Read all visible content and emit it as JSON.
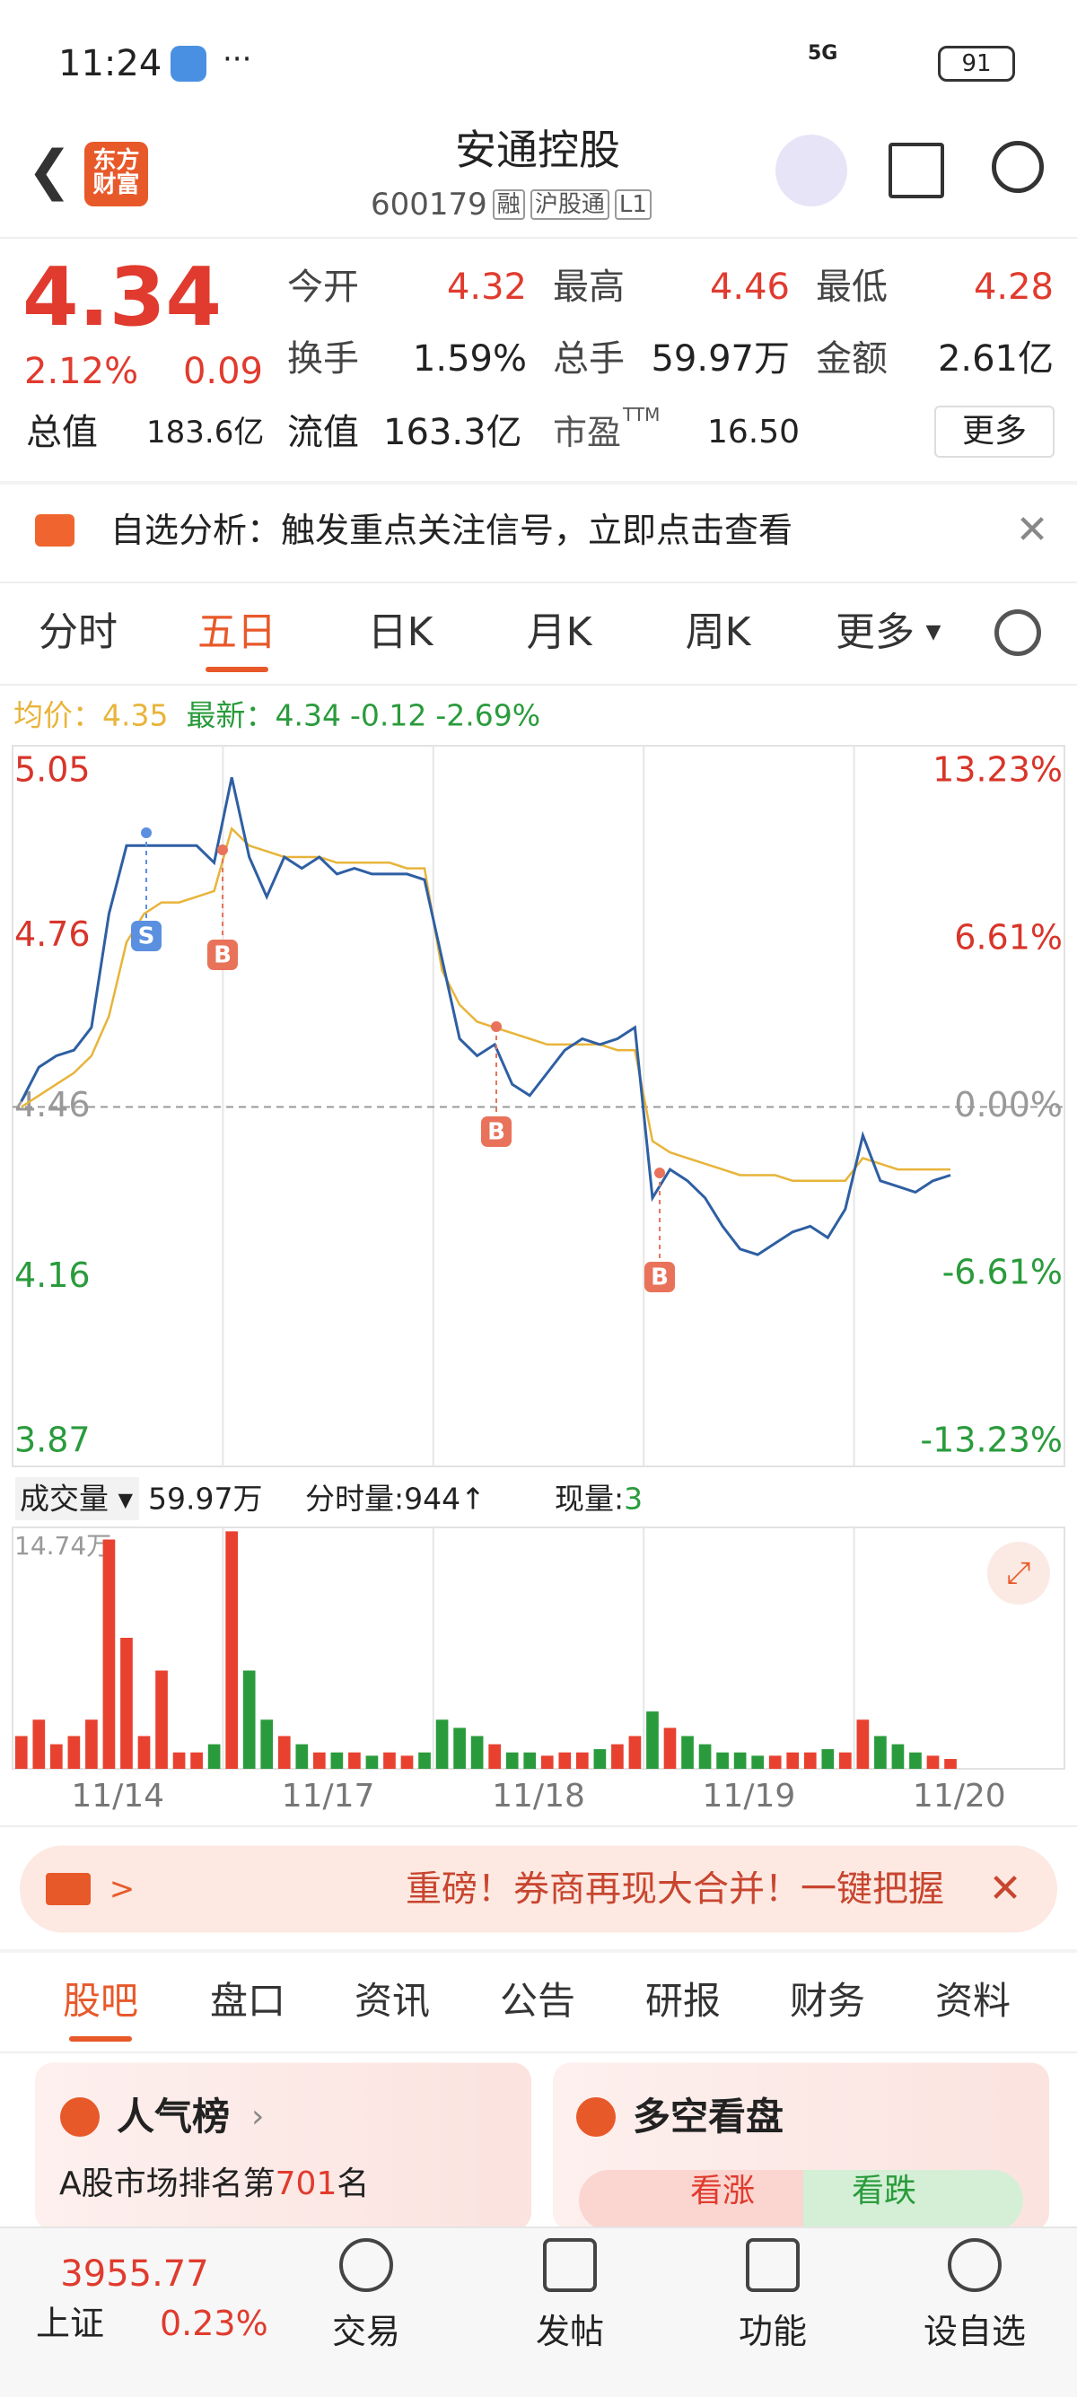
{
  "status_bar": {
    "time": "11:24",
    "network": "5G",
    "battery": "91"
  },
  "header": {
    "logo": "东方财富",
    "title": "安通控股",
    "code": "600179",
    "tags": [
      "融",
      "沪股通",
      "L1"
    ]
  },
  "quote": {
    "price": "4.34",
    "change_pct": "2.12%",
    "change": "0.09",
    "stats": [
      {
        "label": "今开",
        "value": "4.32"
      },
      {
        "label": "最高",
        "value": "4.46"
      },
      {
        "label": "最低",
        "value": "4.28"
      },
      {
        "label": "换手",
        "value": "1.59%"
      },
      {
        "label": "总手",
        "value": "59.97万"
      },
      {
        "label": "金额",
        "value": "2.61亿"
      }
    ],
    "total_value": {
      "label": "总值",
      "value": "183.6亿"
    },
    "float_value": {
      "label": "流值",
      "value": "163.3亿"
    },
    "pe": {
      "label": "市盈",
      "sup": "TTM",
      "value": "16.50"
    },
    "more": "更多"
  },
  "notice": "自选分析：触发重点关注信号，立即点击查看",
  "tabs": {
    "items": [
      "分时",
      "五日",
      "日K",
      "月K",
      "周K",
      "更多"
    ],
    "active": 1
  },
  "legend": {
    "avg_label": "均价：",
    "avg": "4.35",
    "last_label": "最新：",
    "last": "4.34",
    "change": "-0.12",
    "change_pct": "-2.69%"
  },
  "chart_data": [
    {
      "type": "line",
      "xlim": [
        0,
        60
      ],
      "xgrid": [
        12,
        24,
        36,
        48
      ],
      "ylim": [
        3.87,
        5.05
      ],
      "yticks": [
        5.05,
        4.76,
        4.46,
        4.16,
        3.87
      ],
      "y2lim": [
        -13.23,
        13.23
      ],
      "y2ticks": [
        {
          "value": 13.23,
          "label": "13.23%"
        },
        {
          "value": 6.61,
          "label": "6.61%"
        },
        {
          "value": 0,
          "label": "0.00%"
        },
        {
          "value": -6.61,
          "label": "-6.61%"
        },
        {
          "value": -13.23,
          "label": "-13.23%"
        }
      ],
      "trade_marks": [
        "S",
        "B",
        "B",
        "B"
      ],
      "series": [
        {
          "name": "最新",
          "color": "#2e5fa3",
          "values": [
            4.47,
            4.53,
            4.55,
            4.56,
            4.6,
            4.8,
            4.92,
            4.92,
            4.92,
            4.92,
            4.92,
            4.89,
            5.04,
            4.9,
            4.83,
            4.9,
            4.88,
            4.9,
            4.87,
            4.88,
            4.87,
            4.87,
            4.87,
            4.86,
            4.72,
            4.58,
            4.55,
            4.57,
            4.5,
            4.48,
            4.52,
            4.56,
            4.58,
            4.57,
            4.58,
            4.6,
            4.3,
            4.35,
            4.33,
            4.3,
            4.25,
            4.21,
            4.2,
            4.22,
            4.24,
            4.25,
            4.23,
            4.28,
            4.41,
            4.33,
            4.32,
            4.31,
            4.33,
            4.34
          ]
        },
        {
          "name": "均价",
          "color": "#e8b43a",
          "values": [
            4.46,
            4.48,
            4.5,
            4.52,
            4.55,
            4.62,
            4.75,
            4.8,
            4.82,
            4.82,
            4.83,
            4.84,
            4.95,
            4.92,
            4.91,
            4.9,
            4.9,
            4.9,
            4.89,
            4.89,
            4.89,
            4.89,
            4.88,
            4.88,
            4.7,
            4.64,
            4.61,
            4.6,
            4.59,
            4.58,
            4.57,
            4.57,
            4.57,
            4.57,
            4.56,
            4.56,
            4.4,
            4.38,
            4.37,
            4.36,
            4.35,
            4.34,
            4.34,
            4.34,
            4.33,
            4.33,
            4.33,
            4.33,
            4.37,
            4.36,
            4.35,
            4.35,
            4.35,
            4.35
          ]
        }
      ]
    },
    {
      "type": "bar",
      "xlim": [
        0,
        60
      ],
      "ylim": [
        0,
        14.74
      ],
      "yticks": [
        {
          "value": 14.74,
          "label": "14.74万"
        }
      ],
      "xticks": [
        {
          "value": 6,
          "label": "11/14"
        },
        {
          "value": 18,
          "label": "11/17"
        },
        {
          "value": 30,
          "label": "11/18"
        },
        {
          "value": 42,
          "label": "11/19"
        },
        {
          "value": 54,
          "label": "11/20"
        }
      ],
      "up_color": "#e8412f",
      "down_color": "#2a9b3c",
      "values": [
        2,
        3,
        1.5,
        2,
        3,
        14,
        8,
        2,
        6,
        1,
        1,
        1.5,
        14.5,
        6,
        3,
        2,
        1.5,
        1,
        1,
        1,
        0.8,
        1,
        0.8,
        1,
        3,
        2.5,
        2,
        1.5,
        1,
        1,
        0.8,
        1,
        1,
        1.2,
        1.5,
        2,
        3.5,
        2.5,
        2,
        1.5,
        1,
        1,
        0.8,
        0.8,
        1,
        1,
        1.2,
        1,
        3,
        2,
        1.5,
        1,
        0.8,
        0.6
      ]
    }
  ],
  "volume_header": {
    "label": "成交量",
    "total": "59.97万",
    "tick_label": "分时量:",
    "tick": "944↑",
    "now_label": "现量:",
    "now": "3"
  },
  "ad": "重磅！券商再现大合并！一键把握",
  "section_tabs": {
    "items": [
      "股吧",
      "盘口",
      "资讯",
      "公告",
      "研报",
      "财务",
      "资料"
    ],
    "active": 0
  },
  "cards": {
    "popularity": {
      "title": "人气榜",
      "prefix": "A股市场排名第",
      "rank": "701",
      "suffix": "名"
    },
    "sentiment": {
      "title": "多空看盘",
      "up": "看涨",
      "down": "看跌"
    }
  },
  "bottom_nav": {
    "index_value": "3955.77",
    "index_name": "上证",
    "index_change": "0.23%",
    "items": [
      "交易",
      "发帖",
      "功能",
      "设自选"
    ]
  }
}
